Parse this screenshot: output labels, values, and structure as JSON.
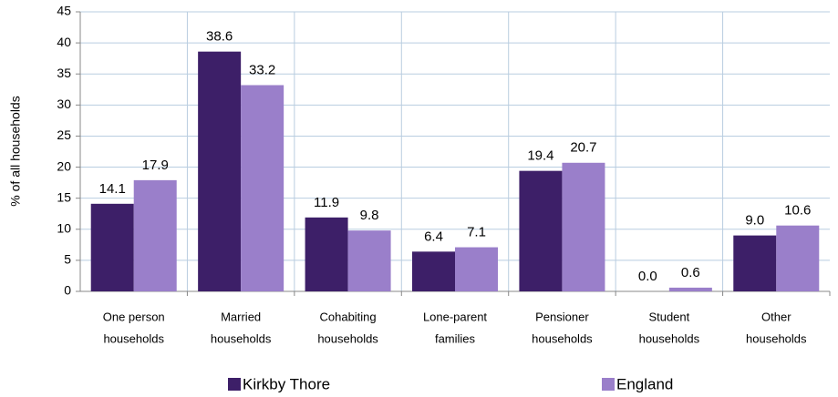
{
  "chart_data": {
    "type": "bar",
    "categories": [
      [
        "One person",
        "households"
      ],
      [
        "Married",
        "households"
      ],
      [
        "Cohabiting",
        "households"
      ],
      [
        "Lone-parent",
        "families"
      ],
      [
        "Pensioner",
        "households"
      ],
      [
        "Student",
        "households"
      ],
      [
        "Other",
        "households"
      ]
    ],
    "series": [
      {
        "name": "Kirkby Thore",
        "color": "#3d1f68",
        "values": [
          14.1,
          38.6,
          11.9,
          6.4,
          19.4,
          0,
          9
        ],
        "value_labels": [
          "14.1",
          "38.6",
          "11.9",
          "6.4",
          "19.4",
          "0.0",
          "9.0"
        ]
      },
      {
        "name": "England",
        "color": "#9a7fca",
        "values": [
          17.9,
          33.2,
          9.8,
          7.1,
          20.7,
          0.6,
          10.6
        ],
        "value_labels": [
          "17.9",
          "33.2",
          "9.8",
          "7.1",
          "20.7",
          "0.6",
          "10.6"
        ]
      }
    ],
    "y_label": "% of all households",
    "ylim": [
      0,
      45
    ],
    "yticks": [
      0,
      5,
      10,
      15,
      20,
      25,
      30,
      35,
      40,
      45
    ],
    "grid": true
  }
}
